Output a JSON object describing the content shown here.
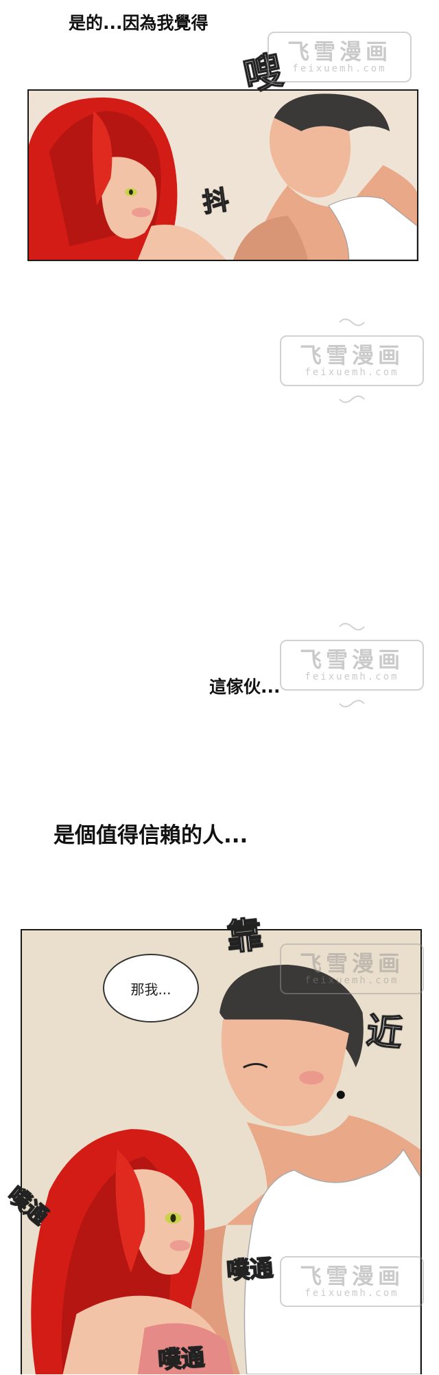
{
  "captions": {
    "line1": "是的...因為我覺得",
    "line2": "這傢伙...",
    "line3": "是個值得信賴的人..."
  },
  "panel1": {
    "sfx_top": "嗖",
    "sfx_shake": "抖"
  },
  "panel2": {
    "bubble_text": "那我...",
    "sfx_lean_1": "靠",
    "sfx_lean_2": "近",
    "sfx_heartbeat": "噗通"
  },
  "watermark": {
    "cn": "飞雪漫画",
    "en": "feixuemh.com"
  },
  "colors": {
    "hair": "#d41c16",
    "skin": "#f3c3a7",
    "male_hair": "#3b3838",
    "background": "#efe6d6",
    "outline": "#1a1a1a"
  }
}
